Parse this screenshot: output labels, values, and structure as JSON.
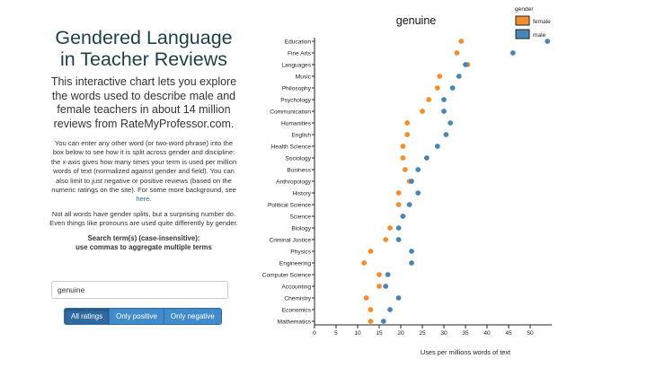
{
  "left": {
    "title": "Gendered Language in Teacher Reviews",
    "intro": "This interactive chart lets you explore the words used to describe male and female teachers in about 14 million reviews from RateMyProfessor.com.",
    "para1": "You can enter any other word (or two-word phrase) into the box below to see how it is split across gender and discipline: the x-axis gives how many times your term is used per million words of text (normalized against gender and field). You can also limit to just negative or positive reviews (based on the numeric ratings on the site). For some more background, see ",
    "para1_link": "here",
    "para1_end": ".",
    "para2": "Not all words have gender splits, but a surprising number do. Even things like pronouns are used quite differently by gender.",
    "search_label_line1": "Search term(s) (case-insensitive):",
    "search_label_line2": "use commas to aggregate multiple terms",
    "search_value": "genuine",
    "buttons": [
      "All ratings",
      "Only positive",
      "Only negative"
    ]
  },
  "chart_data": {
    "type": "scatter",
    "title": "genuine",
    "xlabel": "Uses per millions words of text",
    "xlim": [
      0,
      55
    ],
    "xticks": [
      0,
      5,
      10,
      15,
      20,
      25,
      30,
      35,
      40,
      45,
      50
    ],
    "legend": {
      "title": "gender",
      "position": "top-right"
    },
    "colors": {
      "female": "#f28e2b",
      "male": "#4a86b5"
    },
    "categories": [
      "Education",
      "Fine Arts",
      "Languages",
      "Music",
      "Philosophy",
      "Psychology",
      "Communication",
      "Humanities",
      "English",
      "Health Science",
      "Sociology",
      "Business",
      "Anthropology",
      "History",
      "Political Science",
      "Science",
      "Biology",
      "Criminal Justice",
      "Physics",
      "Engineering",
      "Computer Science",
      "Accounting",
      "Chemistry",
      "Economics",
      "Mathematics"
    ],
    "series": [
      {
        "name": "female",
        "values": [
          34,
          33,
          35.5,
          29,
          28.5,
          26.5,
          25,
          21.5,
          21.5,
          20.5,
          20.5,
          21,
          22,
          19.5,
          19.5,
          20.5,
          17.5,
          16.5,
          13,
          11.5,
          15,
          15,
          12,
          13,
          13
        ]
      },
      {
        "name": "male",
        "values": [
          54,
          46,
          35,
          33.5,
          32,
          30,
          30,
          31.5,
          30.5,
          28.5,
          26,
          24,
          22.5,
          24,
          22,
          20.5,
          19.5,
          19.5,
          22.5,
          22.5,
          17,
          16.5,
          19.5,
          17.5,
          16
        ]
      }
    ]
  }
}
